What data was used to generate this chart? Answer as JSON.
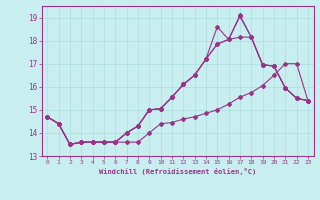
{
  "xlabel": "Windchill (Refroidissement éolien,°C)",
  "bg_color": "#c8eef0",
  "line_color": "#993388",
  "grid_color": "#aadddd",
  "xlim": [
    -0.5,
    23.5
  ],
  "ylim": [
    13.0,
    19.5
  ],
  "xticks": [
    0,
    1,
    2,
    3,
    4,
    5,
    6,
    7,
    8,
    9,
    10,
    11,
    12,
    13,
    14,
    15,
    16,
    17,
    18,
    19,
    20,
    21,
    22,
    23
  ],
  "yticks": [
    13,
    14,
    15,
    16,
    17,
    18,
    19
  ],
  "lines": [
    [
      14.7,
      14.4,
      13.5,
      13.6,
      13.6,
      13.6,
      13.6,
      14.0,
      14.3,
      15.0,
      15.05,
      15.55,
      16.1,
      16.5,
      17.2,
      17.85,
      18.05,
      19.05,
      18.15,
      16.95,
      16.9,
      15.95,
      15.5,
      15.4
    ],
    [
      14.7,
      14.4,
      13.5,
      13.6,
      13.6,
      13.6,
      13.6,
      14.0,
      14.3,
      15.0,
      15.05,
      15.55,
      16.1,
      16.5,
      17.2,
      18.6,
      18.05,
      19.1,
      18.15,
      16.95,
      16.9,
      15.95,
      15.5,
      15.4
    ],
    [
      14.7,
      14.4,
      13.5,
      13.6,
      13.6,
      13.6,
      13.6,
      14.0,
      14.3,
      15.0,
      15.05,
      15.55,
      16.1,
      16.5,
      17.2,
      17.85,
      18.05,
      18.15,
      18.15,
      16.95,
      16.9,
      15.95,
      15.5,
      15.4
    ],
    [
      14.7,
      14.4,
      13.5,
      13.6,
      13.6,
      13.6,
      13.6,
      13.6,
      13.6,
      14.0,
      14.4,
      14.45,
      14.6,
      14.7,
      14.85,
      15.0,
      15.25,
      15.55,
      15.75,
      16.05,
      16.5,
      17.0,
      17.0,
      15.4
    ]
  ]
}
